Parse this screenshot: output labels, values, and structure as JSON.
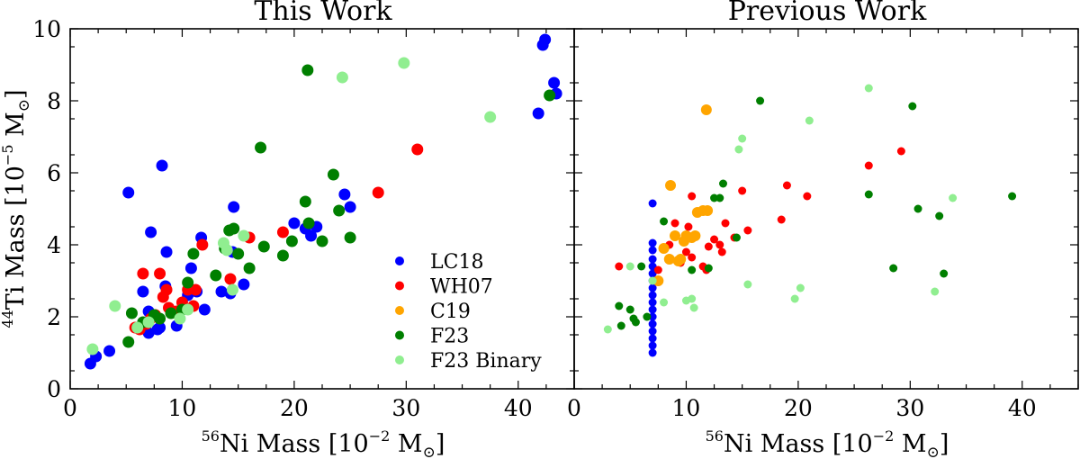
{
  "chart_data": [
    {
      "type": "scatter",
      "title": "This Work",
      "xlabel_sup": "56",
      "xlabel_main": "Ni Mass [10",
      "xlabel_exp": "−2",
      "xlabel_unit": " M",
      "xlabel_close": "]",
      "ylabel_sup": "44",
      "ylabel_main": "Ti Mass [10",
      "ylabel_exp": "−5",
      "ylabel_unit": " M",
      "ylabel_close": "]",
      "xlim": [
        0,
        45
      ],
      "ylim": [
        0,
        10
      ],
      "xticks": [
        0,
        10,
        20,
        30,
        40
      ],
      "yticks": [
        0,
        2,
        4,
        6,
        8,
        10
      ],
      "grid": false,
      "legend": "lower-right",
      "series": [
        {
          "name": "LC18",
          "color": "#0000ff",
          "points": [
            [
              1.8,
              0.7
            ],
            [
              2.3,
              0.9
            ],
            [
              3.5,
              1.05
            ],
            [
              5.2,
              5.45
            ],
            [
              6.5,
              2.7
            ],
            [
              7.0,
              2.15
            ],
            [
              7.2,
              4.35
            ],
            [
              7.0,
              1.55
            ],
            [
              7.8,
              1.65
            ],
            [
              8.0,
              1.7
            ],
            [
              8.2,
              6.2
            ],
            [
              8.5,
              2.85
            ],
            [
              8.6,
              3.8
            ],
            [
              9.5,
              1.75
            ],
            [
              10.5,
              2.6
            ],
            [
              10.8,
              3.35
            ],
            [
              11.3,
              2.7
            ],
            [
              11.7,
              4.2
            ],
            [
              12.0,
              2.2
            ],
            [
              13.5,
              2.7
            ],
            [
              14.3,
              2.65
            ],
            [
              14.5,
              3.8
            ],
            [
              14.6,
              5.05
            ],
            [
              15.5,
              2.9
            ],
            [
              20.0,
              4.6
            ],
            [
              21.0,
              4.45
            ],
            [
              21.5,
              4.25
            ],
            [
              22.0,
              4.5
            ],
            [
              24.5,
              5.4
            ],
            [
              25.0,
              5.05
            ],
            [
              41.8,
              7.65
            ],
            [
              42.2,
              9.55
            ],
            [
              42.4,
              9.7
            ],
            [
              43.2,
              8.5
            ],
            [
              43.4,
              8.2
            ]
          ]
        },
        {
          "name": "WH07",
          "color": "#ff0000",
          "points": [
            [
              5.8,
              1.7
            ],
            [
              6.2,
              1.65
            ],
            [
              6.5,
              3.2
            ],
            [
              6.8,
              1.8
            ],
            [
              7.2,
              1.95
            ],
            [
              7.6,
              2.05
            ],
            [
              8.0,
              3.2
            ],
            [
              8.3,
              2.55
            ],
            [
              8.6,
              2.75
            ],
            [
              8.8,
              2.25
            ],
            [
              9.5,
              2.15
            ],
            [
              10.0,
              2.4
            ],
            [
              10.5,
              2.75
            ],
            [
              11.0,
              2.3
            ],
            [
              11.2,
              2.75
            ],
            [
              11.8,
              4.0
            ],
            [
              14.3,
              3.05
            ],
            [
              16.0,
              4.2
            ],
            [
              19.0,
              4.35
            ],
            [
              27.5,
              5.45
            ],
            [
              31.0,
              6.65
            ]
          ]
        },
        {
          "name": "C19",
          "color": "#ffa500",
          "points": []
        },
        {
          "name": "F23",
          "color": "#007f00",
          "points": [
            [
              5.2,
              1.3
            ],
            [
              5.5,
              2.1
            ],
            [
              6.5,
              1.85
            ],
            [
              7.5,
              2.05
            ],
            [
              8.0,
              1.95
            ],
            [
              9.0,
              2.1
            ],
            [
              10.0,
              2.2
            ],
            [
              10.5,
              2.95
            ],
            [
              11.0,
              3.75
            ],
            [
              13.0,
              3.15
            ],
            [
              13.8,
              3.9
            ],
            [
              14.2,
              4.4
            ],
            [
              14.6,
              4.45
            ],
            [
              15.0,
              3.75
            ],
            [
              16.0,
              3.35
            ],
            [
              17.0,
              6.7
            ],
            [
              17.3,
              3.95
            ],
            [
              19.0,
              3.7
            ],
            [
              19.8,
              4.1
            ],
            [
              21.0,
              5.2
            ],
            [
              21.3,
              4.6
            ],
            [
              21.2,
              8.85
            ],
            [
              22.5,
              4.1
            ],
            [
              23.5,
              5.95
            ],
            [
              24.0,
              4.95
            ],
            [
              25.0,
              4.2
            ],
            [
              42.8,
              8.15
            ]
          ]
        },
        {
          "name": "F23 Binary",
          "color": "#90ee90",
          "points": [
            [
              2.0,
              1.1
            ],
            [
              4.0,
              2.3
            ],
            [
              6.0,
              1.7
            ],
            [
              7.0,
              1.85
            ],
            [
              9.8,
              1.95
            ],
            [
              10.5,
              2.2
            ],
            [
              13.7,
              4.05
            ],
            [
              14.0,
              3.85
            ],
            [
              14.5,
              2.75
            ],
            [
              15.5,
              4.25
            ],
            [
              24.3,
              8.65
            ],
            [
              29.8,
              9.05
            ],
            [
              37.5,
              7.55
            ]
          ]
        }
      ]
    },
    {
      "type": "scatter",
      "title": "Previous Work",
      "xlabel_sup": "56",
      "xlabel_main": "Ni Mass [10",
      "xlabel_exp": "−2",
      "xlabel_unit": " M",
      "xlabel_close": "]",
      "xlim": [
        0,
        45
      ],
      "ylim": [
        0,
        10
      ],
      "xticks": [
        0,
        10,
        20,
        30,
        40
      ],
      "yticks": [
        0,
        2,
        4,
        6,
        8,
        10
      ],
      "grid": false,
      "series": [
        {
          "name": "LC18",
          "color": "#0000ff",
          "points": [
            [
              7.0,
              1.0
            ],
            [
              7.0,
              1.2
            ],
            [
              7.0,
              1.4
            ],
            [
              7.0,
              1.6
            ],
            [
              7.0,
              1.8
            ],
            [
              7.0,
              2.0
            ],
            [
              7.0,
              2.2
            ],
            [
              7.0,
              2.4
            ],
            [
              7.0,
              2.6
            ],
            [
              7.0,
              2.8
            ],
            [
              7.0,
              3.0
            ],
            [
              7.0,
              3.2
            ],
            [
              7.0,
              3.4
            ],
            [
              7.0,
              3.6
            ],
            [
              7.0,
              3.85
            ],
            [
              7.0,
              4.05
            ],
            [
              7.0,
              5.15
            ]
          ]
        },
        {
          "name": "WH07",
          "color": "#ff0000",
          "points": [
            [
              4.0,
              3.4
            ],
            [
              7.5,
              3.3
            ],
            [
              8.5,
              4.0
            ],
            [
              9.0,
              4.6
            ],
            [
              9.5,
              3.5
            ],
            [
              10.0,
              3.8
            ],
            [
              10.2,
              4.5
            ],
            [
              10.5,
              5.35
            ],
            [
              10.5,
              3.65
            ],
            [
              11.5,
              3.4
            ],
            [
              11.8,
              3.3
            ],
            [
              12.0,
              3.95
            ],
            [
              12.5,
              4.15
            ],
            [
              13.0,
              4.0
            ],
            [
              13.2,
              3.8
            ],
            [
              13.5,
              4.6
            ],
            [
              14.3,
              4.2
            ],
            [
              15.0,
              5.5
            ],
            [
              15.5,
              4.4
            ],
            [
              18.5,
              4.7
            ],
            [
              19.0,
              5.65
            ],
            [
              20.8,
              5.35
            ],
            [
              26.3,
              6.2
            ],
            [
              29.2,
              6.6
            ]
          ]
        },
        {
          "name": "C19",
          "color": "#ffa500",
          "points": [
            [
              7.5,
              3.0
            ],
            [
              8.0,
              3.9
            ],
            [
              8.5,
              3.6
            ],
            [
              8.6,
              5.65
            ],
            [
              9.0,
              4.25
            ],
            [
              9.3,
              3.55
            ],
            [
              9.5,
              3.6
            ],
            [
              9.8,
              4.1
            ],
            [
              10.0,
              4.25
            ],
            [
              10.5,
              4.2
            ],
            [
              10.8,
              4.25
            ],
            [
              11.0,
              4.9
            ],
            [
              11.5,
              4.95
            ],
            [
              11.8,
              7.75
            ],
            [
              11.9,
              4.95
            ]
          ]
        },
        {
          "name": "F23",
          "color": "#007f00",
          "points": [
            [
              4.0,
              2.3
            ],
            [
              4.2,
              1.75
            ],
            [
              5.0,
              2.2
            ],
            [
              5.3,
              1.95
            ],
            [
              5.5,
              1.85
            ],
            [
              6.0,
              3.4
            ],
            [
              6.5,
              2.0
            ],
            [
              8.0,
              4.65
            ],
            [
              10.5,
              3.3
            ],
            [
              12.0,
              3.35
            ],
            [
              12.5,
              5.3
            ],
            [
              13.0,
              5.3
            ],
            [
              13.3,
              5.7
            ],
            [
              14.5,
              4.2
            ],
            [
              16.6,
              8.0
            ],
            [
              26.3,
              5.4
            ],
            [
              28.5,
              3.35
            ],
            [
              30.2,
              7.85
            ],
            [
              30.7,
              5.0
            ],
            [
              32.6,
              4.8
            ],
            [
              33.0,
              3.2
            ],
            [
              39.1,
              5.35
            ]
          ]
        },
        {
          "name": "F23 Binary",
          "color": "#90ee90",
          "points": [
            [
              3.0,
              1.65
            ],
            [
              5.0,
              3.4
            ],
            [
              7.0,
              3.0
            ],
            [
              8.0,
              2.4
            ],
            [
              10.0,
              2.45
            ],
            [
              10.5,
              2.5
            ],
            [
              10.7,
              2.25
            ],
            [
              14.7,
              6.65
            ],
            [
              15.0,
              6.95
            ],
            [
              15.5,
              2.9
            ],
            [
              19.7,
              2.5
            ],
            [
              20.2,
              2.8
            ],
            [
              21.0,
              7.45
            ],
            [
              26.3,
              8.35
            ],
            [
              32.2,
              2.7
            ],
            [
              33.8,
              5.3
            ]
          ]
        }
      ]
    }
  ]
}
